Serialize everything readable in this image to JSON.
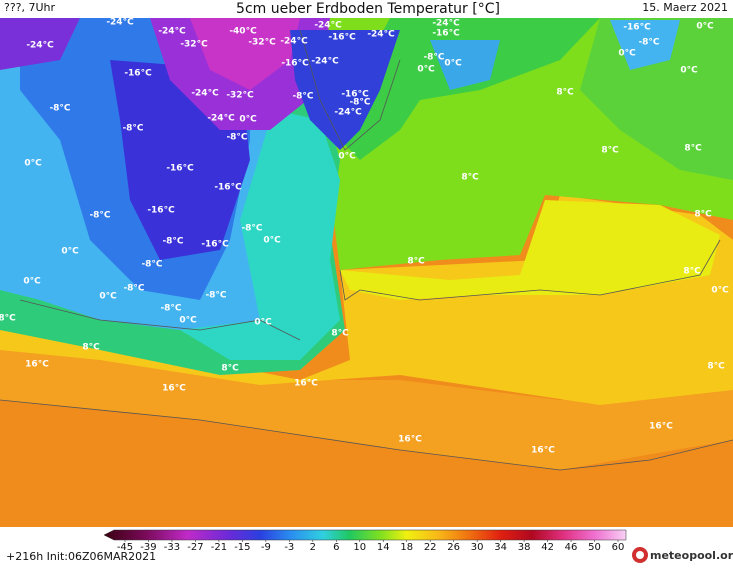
{
  "header": {
    "left": "???, 7Uhr",
    "title": "5cm ueber Erdboden Temperatur [°C]",
    "date": "15. Maerz 2021"
  },
  "map": {
    "labels": [
      "-24°C",
      "-24°C",
      "-24°C",
      "-32°C",
      "-40°C",
      "-32°C",
      "-24°C",
      "-16°C",
      "-24°C",
      "-24°C",
      "-24°C",
      "-16°C",
      "-16°C",
      "-16°C",
      "-24°C",
      "-8°C",
      "0°C",
      "0°C",
      "-8°C",
      "-8°C",
      "-24°C",
      "-32°C",
      "-8°C",
      "-16°C",
      "-8°C",
      "-24°C",
      "0°C",
      "-24°C",
      "-8°C",
      "0°C",
      "8°C",
      "-16°C",
      "-8°C",
      "0°C",
      "0°C",
      "0°C",
      "8°C",
      "8°C",
      "0°C",
      "-16°C",
      "8°C",
      "-16°C",
      "-8°C",
      "-16°C",
      "-8°C",
      "-8°C",
      "-16°C",
      "0°C",
      "8°C",
      "0°C",
      "-8°C",
      "8°C",
      "8°C",
      "0°C",
      "0°C",
      "-8°C",
      "-8°C",
      "-8°C",
      "0°C",
      "0°C",
      "0°C",
      "8°C",
      "8°C",
      "8°C",
      "16°C",
      "8°C",
      "8°C",
      "16°C",
      "16°C",
      "16°C",
      "16°C",
      "16°C"
    ]
  },
  "colorbar": {
    "ticks": [
      -45,
      -39,
      -33,
      -27,
      -21,
      -15,
      -9,
      -3,
      2,
      6,
      10,
      14,
      18,
      22,
      26,
      30,
      34,
      38,
      42,
      46,
      50,
      60
    ]
  },
  "footer": {
    "run": "+216h Init:06Z06MAR2021",
    "logo": "meteopool.org"
  }
}
